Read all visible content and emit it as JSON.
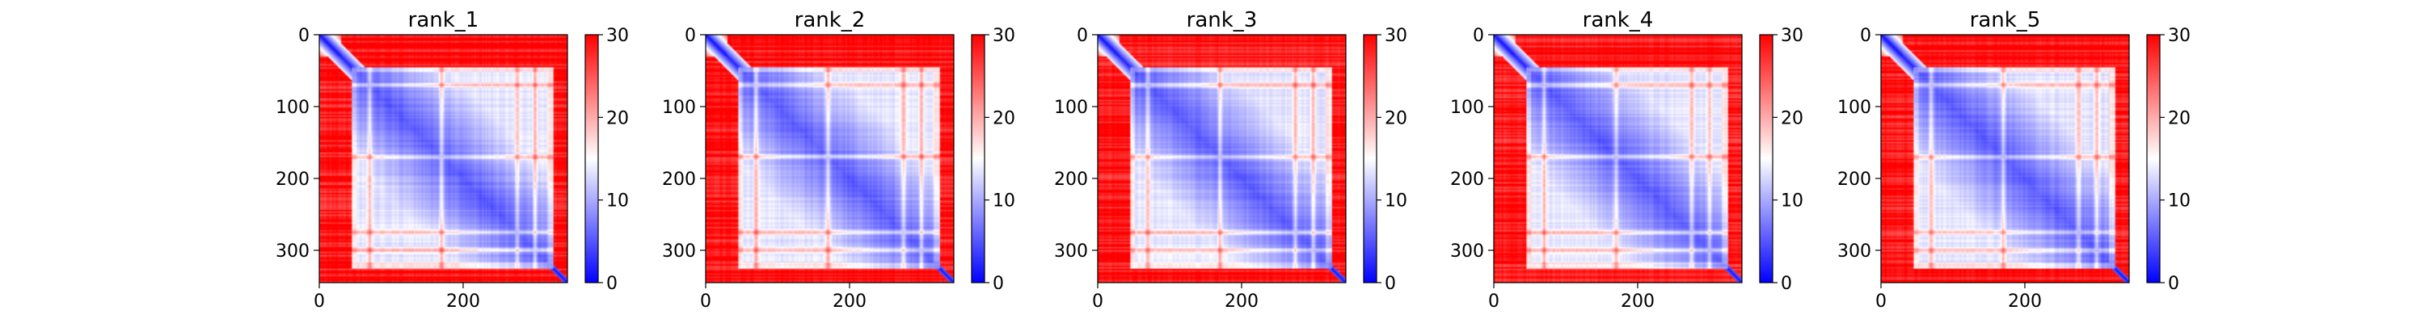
{
  "figure": {
    "background": "#ffffff"
  },
  "colormap": {
    "name": "bwr",
    "low": "#0000ff",
    "mid": "#ffffff",
    "high": "#ff0000"
  },
  "chart_data": [
    {
      "type": "heatmap",
      "title": "rank_1",
      "x_ticks": [
        "0",
        "200"
      ],
      "y_ticks": [
        "0",
        "100",
        "200",
        "300"
      ],
      "colorbar_ticks": [
        "0",
        "10",
        "20",
        "30"
      ],
      "matrix_size": 345,
      "xlim": [
        0,
        345
      ],
      "ylim": [
        345,
        0
      ],
      "clim": [
        0,
        30
      ],
      "structure": {
        "n_domain": [
          0,
          30
        ],
        "linker_end": 45,
        "core": [
          45,
          325
        ],
        "c_tail_start": 325,
        "band_rows": [
          70,
          170,
          275,
          300
        ]
      }
    },
    {
      "type": "heatmap",
      "title": "rank_2",
      "x_ticks": [
        "0",
        "200"
      ],
      "y_ticks": [
        "0",
        "100",
        "200",
        "300"
      ],
      "colorbar_ticks": [
        "0",
        "10",
        "20",
        "30"
      ],
      "matrix_size": 345,
      "xlim": [
        0,
        345
      ],
      "ylim": [
        345,
        0
      ],
      "clim": [
        0,
        30
      ],
      "structure": {
        "n_domain": [
          0,
          30
        ],
        "linker_end": 45,
        "core": [
          45,
          325
        ],
        "c_tail_start": 325,
        "band_rows": [
          70,
          170,
          275,
          300
        ]
      }
    },
    {
      "type": "heatmap",
      "title": "rank_3",
      "x_ticks": [
        "0",
        "200"
      ],
      "y_ticks": [
        "0",
        "100",
        "200",
        "300"
      ],
      "colorbar_ticks": [
        "0",
        "10",
        "20",
        "30"
      ],
      "matrix_size": 345,
      "xlim": [
        0,
        345
      ],
      "ylim": [
        345,
        0
      ],
      "clim": [
        0,
        30
      ],
      "structure": {
        "n_domain": [
          0,
          30
        ],
        "linker_end": 45,
        "core": [
          45,
          325
        ],
        "c_tail_start": 325,
        "band_rows": [
          70,
          170,
          275,
          300
        ]
      }
    },
    {
      "type": "heatmap",
      "title": "rank_4",
      "x_ticks": [
        "0",
        "200"
      ],
      "y_ticks": [
        "0",
        "100",
        "200",
        "300"
      ],
      "colorbar_ticks": [
        "0",
        "10",
        "20",
        "30"
      ],
      "matrix_size": 345,
      "xlim": [
        0,
        345
      ],
      "ylim": [
        345,
        0
      ],
      "clim": [
        0,
        30
      ],
      "structure": {
        "n_domain": [
          0,
          30
        ],
        "linker_end": 45,
        "core": [
          45,
          325
        ],
        "c_tail_start": 325,
        "band_rows": [
          70,
          170,
          275,
          300
        ]
      }
    },
    {
      "type": "heatmap",
      "title": "rank_5",
      "x_ticks": [
        "0",
        "200"
      ],
      "y_ticks": [
        "0",
        "100",
        "200",
        "300"
      ],
      "colorbar_ticks": [
        "0",
        "10",
        "20",
        "30"
      ],
      "matrix_size": 345,
      "xlim": [
        0,
        345
      ],
      "ylim": [
        345,
        0
      ],
      "clim": [
        0,
        30
      ],
      "structure": {
        "n_domain": [
          0,
          30
        ],
        "linker_end": 45,
        "core": [
          45,
          325
        ],
        "c_tail_start": 325,
        "band_rows": [
          70,
          170,
          275,
          300
        ]
      }
    }
  ]
}
